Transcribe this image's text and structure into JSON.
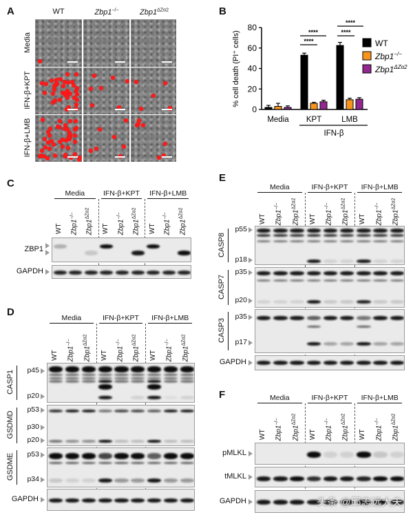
{
  "panel_labels": {
    "a": "A",
    "b": "B",
    "c": "C",
    "d": "D",
    "e": "E",
    "f": "F"
  },
  "genotypes": [
    {
      "base": "WT",
      "sup": ""
    },
    {
      "base": "Zbp1",
      "sup": "−/−"
    },
    {
      "base": "Zbp1",
      "sup": "ΔZα2"
    }
  ],
  "panel_a": {
    "rows": [
      "Media",
      "IFN-β+KPT",
      "IFN-β+LMB"
    ]
  },
  "chart_data": {
    "type": "bar",
    "categories": [
      "Media",
      "KPT",
      "LMB"
    ],
    "group_label": "IFN-β",
    "ylabel": "% cell death (PI⁺ cells)",
    "ylim": [
      0,
      80
    ],
    "yticks": [
      0,
      20,
      40,
      60,
      80
    ],
    "legend_position": "right",
    "series": [
      {
        "name": "WT",
        "italic": false,
        "sup": "",
        "color": "#000000",
        "values": [
          2,
          53,
          62.5
        ],
        "errors": [
          2,
          2,
          3
        ]
      },
      {
        "name": "Zbp1",
        "italic": true,
        "sup": "−/−",
        "color": "#f7941d",
        "values": [
          3,
          6,
          9.5
        ],
        "errors": [
          3,
          1,
          1.5
        ]
      },
      {
        "name": "Zbp1",
        "italic": true,
        "sup": "ΔZα2",
        "color": "#92278f",
        "values": [
          2,
          7.5,
          10
        ],
        "errors": [
          1.5,
          1.5,
          1.5
        ]
      }
    ],
    "significance": [
      {
        "category": "KPT",
        "compare": [
          "WT",
          "Zbp1−/−"
        ],
        "label": "****"
      },
      {
        "category": "KPT",
        "compare": [
          "WT",
          "Zbp1ΔZα2"
        ],
        "label": "****"
      },
      {
        "category": "LMB",
        "compare": [
          "WT",
          "Zbp1−/−"
        ],
        "label": "****"
      },
      {
        "category": "LMB",
        "compare": [
          "WT",
          "Zbp1ΔZα2"
        ],
        "label": "****"
      }
    ]
  },
  "blot_groups": [
    "Media",
    "IFN-β+KPT",
    "IFN-β+LMB"
  ],
  "panel_c": {
    "strips": [
      {
        "name": "ZBP1",
        "markers": [
          "",
          ""
        ]
      },
      {
        "name": "GAPDH",
        "markers": []
      }
    ]
  },
  "panel_d": {
    "strips": [
      {
        "name": "CASP1",
        "markers": [
          "p45",
          "p20"
        ]
      },
      {
        "name": "GSDMD",
        "markers": [
          "p53",
          "p30",
          "p20"
        ]
      },
      {
        "name": "GSDME",
        "markers": [
          "p53",
          "p34"
        ]
      },
      {
        "name": "GAPDH",
        "markers": []
      }
    ]
  },
  "panel_e": {
    "strips": [
      {
        "name": "CASP8",
        "markers": [
          "p55",
          "p18"
        ]
      },
      {
        "name": "CASP7",
        "markers": [
          "p35",
          "p20"
        ]
      },
      {
        "name": "CASP3",
        "markers": [
          "p35",
          "p17"
        ]
      },
      {
        "name": "GAPDH",
        "markers": []
      }
    ]
  },
  "panel_f": {
    "strips": [
      {
        "name": "pMLKL",
        "markers": []
      },
      {
        "name": "tMLKL",
        "markers": []
      },
      {
        "name": "GAPDH",
        "markers": []
      }
    ]
  },
  "watermark": "头条 @邱志远大夫"
}
